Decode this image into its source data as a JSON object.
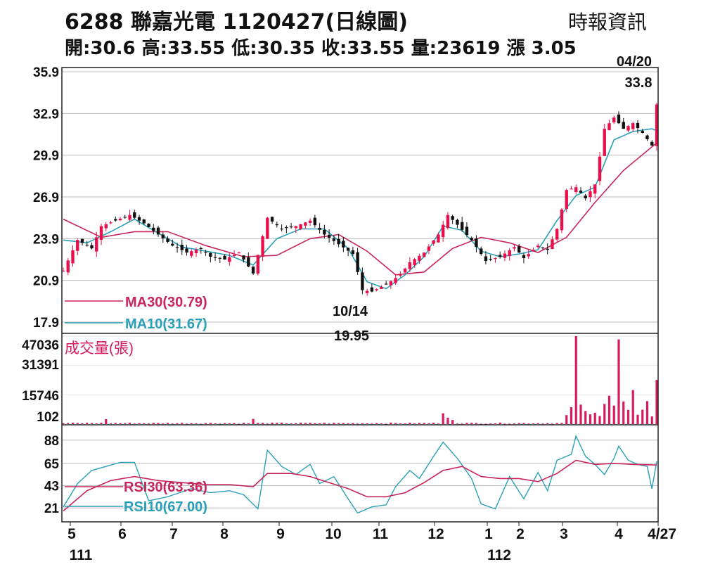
{
  "header": {
    "title": "6288  聯嘉光電 1120427(日線圖)",
    "source": "時報資訊",
    "ohlc": "開:30.6 高:33.55 低:30.35 收:33.55 量:23619 漲 3.05"
  },
  "colors": {
    "up": "#e8104a",
    "down": "#111111",
    "ma10": "#2aa0b8",
    "ma30": "#c8265a",
    "volume": "#d81b60",
    "grid": "#bdbdbd"
  },
  "chart_data": [
    {
      "type": "candlestick",
      "panel": "price",
      "yticks": [
        35.9,
        32.9,
        29.9,
        26.9,
        23.9,
        20.9,
        17.9
      ],
      "ylim": [
        17.9,
        35.9
      ],
      "x_month_labels": [
        "5",
        "6",
        "7",
        "8",
        "9",
        "10",
        "11",
        "12",
        "1",
        "2",
        "3",
        "4",
        "4/27"
      ],
      "x_year_labels": [
        "111",
        "112"
      ],
      "series": [
        {
          "name": "MA30(30.79)",
          "role": "ma30"
        },
        {
          "name": "MA10(31.67)",
          "role": "ma10"
        }
      ],
      "annotations": [
        {
          "date": "04/20",
          "value": "33.8"
        },
        {
          "date": "10/14",
          "value": "19.95"
        }
      ],
      "close_path": [
        [
          0,
          21.6
        ],
        [
          3,
          23.8
        ],
        [
          6,
          23.2
        ],
        [
          8,
          24.8
        ],
        [
          11,
          25.2
        ],
        [
          14,
          25.6
        ],
        [
          17,
          25.0
        ],
        [
          20,
          24.2
        ],
        [
          23,
          23.4
        ],
        [
          26,
          22.9
        ],
        [
          29,
          23.2
        ],
        [
          31,
          22.6
        ],
        [
          34,
          22.4
        ],
        [
          37,
          22.9
        ],
        [
          40,
          21.4
        ],
        [
          43,
          25.4
        ],
        [
          46,
          24.6
        ],
        [
          49,
          24.8
        ],
        [
          52,
          25.2
        ],
        [
          55,
          24.2
        ],
        [
          58,
          23.5
        ],
        [
          61,
          22.8
        ],
        [
          63,
          20.2
        ],
        [
          65,
          20.1
        ],
        [
          68,
          20.6
        ],
        [
          71,
          21.3
        ],
        [
          73,
          22.2
        ],
        [
          76,
          22.9
        ],
        [
          79,
          24.2
        ],
        [
          81,
          25.6
        ],
        [
          83,
          24.9
        ],
        [
          86,
          23.8
        ],
        [
          89,
          22.3
        ],
        [
          92,
          22.6
        ],
        [
          95,
          23.3
        ],
        [
          97,
          22.5
        ],
        [
          100,
          23.4
        ],
        [
          102,
          23.1
        ],
        [
          104,
          24.6
        ],
        [
          106,
          27.4
        ],
        [
          108,
          27.6
        ],
        [
          110,
          26.8
        ],
        [
          112,
          27.8
        ],
        [
          114,
          31.8
        ],
        [
          116,
          32.6
        ],
        [
          118,
          31.8
        ],
        [
          120,
          32.2
        ],
        [
          122,
          31.5
        ],
        [
          124,
          30.6
        ],
        [
          125,
          33.55
        ]
      ],
      "ma10_path": [
        [
          0,
          23.8
        ],
        [
          5,
          23.6
        ],
        [
          10,
          24.4
        ],
        [
          15,
          25.3
        ],
        [
          20,
          24.3
        ],
        [
          25,
          23.3
        ],
        [
          30,
          23.0
        ],
        [
          35,
          22.7
        ],
        [
          40,
          22.0
        ],
        [
          45,
          23.9
        ],
        [
          50,
          24.6
        ],
        [
          55,
          24.6
        ],
        [
          60,
          23.2
        ],
        [
          64,
          20.8
        ],
        [
          68,
          20.3
        ],
        [
          72,
          21.3
        ],
        [
          76,
          22.6
        ],
        [
          80,
          24.8
        ],
        [
          84,
          24.5
        ],
        [
          88,
          23.0
        ],
        [
          92,
          22.6
        ],
        [
          96,
          22.8
        ],
        [
          100,
          23.1
        ],
        [
          104,
          25.2
        ],
        [
          108,
          27.0
        ],
        [
          112,
          27.6
        ],
        [
          116,
          31.0
        ],
        [
          120,
          31.6
        ],
        [
          124,
          31.8
        ],
        [
          125,
          31.67
        ]
      ],
      "ma30_path": [
        [
          0,
          25.3
        ],
        [
          8,
          24.0
        ],
        [
          15,
          24.4
        ],
        [
          22,
          24.4
        ],
        [
          30,
          23.4
        ],
        [
          38,
          22.6
        ],
        [
          45,
          22.7
        ],
        [
          52,
          23.9
        ],
        [
          58,
          24.2
        ],
        [
          64,
          23.0
        ],
        [
          70,
          21.3
        ],
        [
          76,
          21.5
        ],
        [
          82,
          23.2
        ],
        [
          88,
          24.0
        ],
        [
          94,
          23.6
        ],
        [
          100,
          22.9
        ],
        [
          106,
          24.0
        ],
        [
          112,
          26.5
        ],
        [
          118,
          28.8
        ],
        [
          125,
          30.79
        ]
      ]
    },
    {
      "type": "bar",
      "panel": "volume",
      "title": "成交量(張)",
      "yticks": [
        47036,
        31391,
        15746,
        102
      ],
      "ylim": [
        0,
        47036
      ],
      "spikes": [
        [
          9,
          2600
        ],
        [
          40,
          2800
        ],
        [
          80,
          5800
        ],
        [
          81,
          3400
        ],
        [
          82,
          2200
        ],
        [
          106,
          4800
        ],
        [
          107,
          9000
        ],
        [
          108,
          47036
        ],
        [
          109,
          10400
        ],
        [
          110,
          7000
        ],
        [
          111,
          5200
        ],
        [
          112,
          6100
        ],
        [
          113,
          4300
        ],
        [
          114,
          10800
        ],
        [
          115,
          15200
        ],
        [
          116,
          9900
        ],
        [
          117,
          45300
        ],
        [
          118,
          12100
        ],
        [
          119,
          7600
        ],
        [
          120,
          18200
        ],
        [
          121,
          5000
        ],
        [
          122,
          7700
        ],
        [
          123,
          12300
        ],
        [
          124,
          4100
        ],
        [
          125,
          23619
        ]
      ]
    },
    {
      "type": "line",
      "panel": "rsi",
      "yticks": [
        88,
        65,
        43,
        21
      ],
      "ylim": [
        10,
        92
      ],
      "series": [
        {
          "name": "RSI30(63.36)",
          "role": "rsi30",
          "path": [
            [
              0,
              18
            ],
            [
              5,
              38
            ],
            [
              10,
              48
            ],
            [
              15,
              52
            ],
            [
              20,
              48
            ],
            [
              25,
              46
            ],
            [
              30,
              44
            ],
            [
              35,
              44
            ],
            [
              40,
              42
            ],
            [
              43,
              55
            ],
            [
              48,
              55
            ],
            [
              52,
              52
            ],
            [
              56,
              46
            ],
            [
              60,
              40
            ],
            [
              64,
              32
            ],
            [
              68,
              32
            ],
            [
              72,
              36
            ],
            [
              76,
              46
            ],
            [
              80,
              58
            ],
            [
              84,
              62
            ],
            [
              88,
              52
            ],
            [
              92,
              50
            ],
            [
              96,
              50
            ],
            [
              100,
              47
            ],
            [
              104,
              55
            ],
            [
              108,
              68
            ],
            [
              112,
              64
            ],
            [
              116,
              65
            ],
            [
              120,
              64
            ],
            [
              125,
              63.36
            ]
          ]
        },
        {
          "name": "RSI10(67.00)",
          "role": "rsi10",
          "path": [
            [
              0,
              22
            ],
            [
              3,
              45
            ],
            [
              6,
              58
            ],
            [
              9,
              62
            ],
            [
              12,
              66
            ],
            [
              15,
              66
            ],
            [
              18,
              28
            ],
            [
              22,
              32
            ],
            [
              27,
              40
            ],
            [
              31,
              36
            ],
            [
              35,
              38
            ],
            [
              38,
              34
            ],
            [
              41,
              20
            ],
            [
              43,
              78
            ],
            [
              46,
              62
            ],
            [
              49,
              54
            ],
            [
              52,
              64
            ],
            [
              54,
              45
            ],
            [
              57,
              52
            ],
            [
              60,
              30
            ],
            [
              62,
              16
            ],
            [
              65,
              22
            ],
            [
              68,
              24
            ],
            [
              70,
              42
            ],
            [
              73,
              58
            ],
            [
              75,
              50
            ],
            [
              78,
              72
            ],
            [
              80,
              86
            ],
            [
              83,
              70
            ],
            [
              86,
              50
            ],
            [
              88,
              25
            ],
            [
              91,
              20
            ],
            [
              94,
              52
            ],
            [
              97,
              30
            ],
            [
              100,
              56
            ],
            [
              102,
              38
            ],
            [
              104,
              68
            ],
            [
              107,
              74
            ],
            [
              108,
              92
            ],
            [
              110,
              72
            ],
            [
              112,
              64
            ],
            [
              114,
              54
            ],
            [
              116,
              70
            ],
            [
              117,
              82
            ],
            [
              119,
              68
            ],
            [
              121,
              64
            ],
            [
              123,
              62
            ],
            [
              124,
              40
            ],
            [
              125,
              67
            ]
          ]
        }
      ]
    }
  ]
}
